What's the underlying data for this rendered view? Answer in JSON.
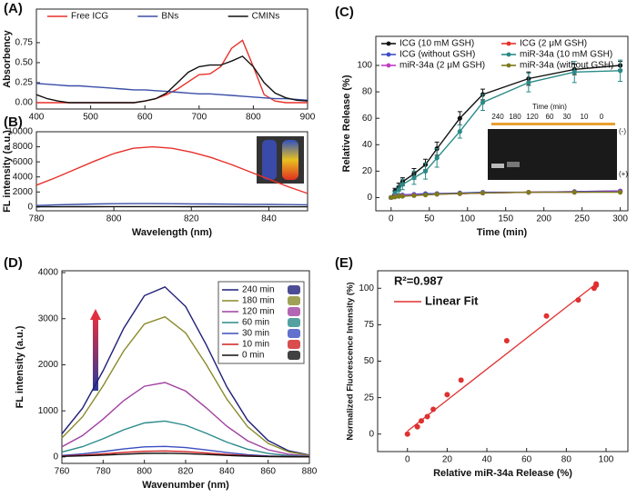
{
  "chart_data": [
    {
      "type": "line",
      "panel": "(A)",
      "ylabel": "Absorbency",
      "legend": "top",
      "x": [
        400,
        420,
        440,
        460,
        480,
        500,
        520,
        540,
        560,
        580,
        600,
        620,
        640,
        660,
        680,
        700,
        720,
        740,
        760,
        780,
        800,
        820,
        840,
        860,
        880,
        900
      ],
      "series": [
        {
          "name": "Free ICG",
          "color": "#e8302a",
          "values": [
            0,
            0,
            0,
            0,
            0,
            0,
            0,
            0,
            0,
            0,
            0.02,
            0.05,
            0.1,
            0.17,
            0.26,
            0.35,
            0.36,
            0.45,
            0.68,
            0.78,
            0.45,
            0.1,
            0.02,
            0,
            0,
            0
          ]
        },
        {
          "name": "BNs",
          "color": "#3b4ea8",
          "values": [
            0.24,
            0.23,
            0.22,
            0.21,
            0.21,
            0.2,
            0.19,
            0.18,
            0.17,
            0.16,
            0.16,
            0.15,
            0.14,
            0.13,
            0.12,
            0.11,
            0.11,
            0.1,
            0.09,
            0.08,
            0.07,
            0.06,
            0.05,
            0.05,
            0.04,
            0.03
          ]
        },
        {
          "name": "CMINs",
          "color": "#111111",
          "values": [
            0.1,
            0.05,
            0.02,
            0,
            0,
            0,
            0,
            0,
            0,
            0,
            0.02,
            0.05,
            0.12,
            0.25,
            0.38,
            0.45,
            0.47,
            0.47,
            0.52,
            0.58,
            0.45,
            0.25,
            0.12,
            0.06,
            0.03,
            0.02
          ]
        }
      ],
      "xlim": [
        400,
        900
      ],
      "xticks": [
        400,
        500,
        600,
        700,
        800,
        900
      ],
      "ylim": [
        -0.08,
        1.17
      ],
      "yticks": [
        {
          "value": 0,
          "label": "0.00"
        },
        {
          "value": 0.25,
          "label": "0.25"
        },
        {
          "value": 0.5,
          "label": "0.50"
        },
        {
          "value": 0.75,
          "label": "0.75"
        }
      ]
    },
    {
      "type": "line",
      "panel": "(B)",
      "xlabel": "Wavelength (nm)",
      "ylabel": "FL intensity (a.u.)",
      "x": [
        780,
        785,
        790,
        795,
        800,
        805,
        810,
        815,
        820,
        825,
        830,
        835,
        840,
        845,
        850
      ],
      "series": [
        {
          "color": "#e8302a",
          "values": [
            2900,
            3900,
            5000,
            6100,
            7100,
            7800,
            8000,
            7800,
            7300,
            6600,
            5700,
            4700,
            3700,
            2700,
            1800
          ]
        },
        {
          "color": "#3b4ea8",
          "values": [
            200,
            280,
            350,
            410,
            440,
            450,
            450,
            440,
            420,
            400,
            380,
            360,
            340,
            320,
            300
          ]
        },
        {
          "color": "#111111",
          "values": [
            30,
            35,
            40,
            45,
            50,
            50,
            50,
            50,
            45,
            45,
            40,
            40,
            35,
            35,
            30
          ]
        }
      ],
      "xlim": [
        780,
        850
      ],
      "xticks": [
        780,
        800,
        820,
        840
      ],
      "ylim": [
        -500,
        10000
      ],
      "yticks": [
        0,
        2000,
        4000,
        6000,
        8000,
        10000
      ]
    },
    {
      "type": "line",
      "panel": "(C)",
      "xlabel": "Time (min)",
      "ylabel": "Relative Release (%)",
      "legend": "upper left",
      "markers": true,
      "x": [
        0,
        5,
        10,
        15,
        30,
        45,
        60,
        90,
        120,
        180,
        240,
        300
      ],
      "series": [
        {
          "name": "ICG (10 mM GSH)",
          "color": "#111111",
          "values": [
            0,
            5,
            8,
            12,
            18,
            25,
            37,
            60,
            78,
            90,
            97,
            100
          ],
          "errors": [
            1,
            2,
            3,
            3,
            4,
            4,
            5,
            5,
            4,
            5,
            4,
            3
          ]
        },
        {
          "name": "ICG (2 μM GSH)",
          "color": "#e8302a",
          "values": [
            0,
            1,
            1,
            1.5,
            2,
            2.5,
            3,
            3,
            3.5,
            4,
            4.5,
            5
          ]
        },
        {
          "name": "ICG (without GSH)",
          "color": "#3f4ec7",
          "values": [
            0,
            1,
            1.5,
            2,
            2.5,
            3,
            3,
            3.5,
            4,
            4,
            4.5,
            5
          ]
        },
        {
          "name": "miR-34a (10 mM GSH)",
          "color": "#2a8a87",
          "values": [
            0,
            3,
            6,
            10,
            15,
            20,
            30,
            50,
            72,
            87,
            95,
            96
          ],
          "errors": [
            1,
            2,
            3,
            4,
            5,
            6,
            7,
            5,
            6,
            7,
            8,
            8
          ]
        },
        {
          "name": "miR-34a (2 μM GSH)",
          "color": "#c13dc4",
          "values": [
            0,
            1,
            1,
            1.5,
            2,
            2,
            2.5,
            3,
            3.5,
            4,
            4,
            4.5
          ]
        },
        {
          "name": "miR-34a (without GSH)",
          "color": "#7d7a1c",
          "values": [
            0,
            0.5,
            1,
            1,
            1.5,
            2,
            2.5,
            3,
            3.5,
            4,
            4,
            4
          ]
        }
      ],
      "gel": {
        "title": "Time (min)",
        "lanes": [
          "240",
          "180",
          "120",
          "60",
          "30",
          "10",
          "0"
        ],
        "top": "(-)",
        "bottom": "(+)"
      },
      "xlim": [
        -20,
        310
      ],
      "xticks": [
        0,
        50,
        100,
        150,
        200,
        250,
        300
      ],
      "ylim": [
        -10,
        122
      ],
      "yticks": [
        0,
        20,
        40,
        60,
        80,
        100
      ]
    },
    {
      "type": "line",
      "panel": "(D)",
      "xlabel": "Wavenumber (nm)",
      "ylabel": "FL intensity (a.u.)",
      "legend": "upper right",
      "x": [
        760,
        770,
        780,
        790,
        800,
        810,
        820,
        830,
        840,
        850,
        860,
        870,
        880
      ],
      "series": [
        {
          "name": "240 min",
          "color": "#1f1f7a",
          "values": [
            500,
            1058,
            1872,
            2794,
            3500,
            3689,
            3263,
            2431,
            1521,
            799,
            355,
            133,
            41
          ]
        },
        {
          "name": "180 min",
          "color": "#8a8a2a",
          "values": [
            412,
            872,
            1543,
            2303,
            2885,
            3041,
            2690,
            2004,
            1254,
            659,
            293,
            110,
            34
          ]
        },
        {
          "name": "120 min",
          "color": "#a040a0",
          "values": [
            219,
            463,
            820,
            1223,
            1533,
            1615,
            1429,
            1064,
            666,
            350,
            156,
            58,
            18
          ]
        },
        {
          "name": "60 min",
          "color": "#2a8a8a",
          "values": [
            105,
            223,
            395,
            589,
            738,
            778,
            688,
            512,
            321,
            168,
            75,
            28,
            9
          ]
        },
        {
          "name": "30 min",
          "color": "#3a4ec0",
          "values": [
            31,
            66,
            116,
            174,
            218,
            229,
            203,
            151,
            95,
            50,
            22,
            8,
            3
          ]
        },
        {
          "name": "10 min",
          "color": "#d02020",
          "values": [
            18,
            37,
            66,
            98,
            123,
            130,
            115,
            85,
            53,
            28,
            12,
            5,
            1
          ]
        },
        {
          "name": "0 min",
          "color": "#111111",
          "values": [
            11,
            23,
            40,
            60,
            76,
            80,
            71,
            53,
            33,
            17,
            8,
            3,
            1
          ]
        }
      ],
      "xlim": [
        760,
        880
      ],
      "xticks": [
        760,
        780,
        800,
        820,
        840,
        860,
        880
      ],
      "ylim": [
        -140,
        4040
      ],
      "yticks": [
        0,
        1000,
        2000,
        3000,
        4000
      ]
    },
    {
      "type": "scatter",
      "panel": "(E)",
      "xlabel": "Relative miR-34a Release (%)",
      "ylabel": "Normalized Fluorescence Intensity (%)",
      "annotation": "R²=0.987",
      "legend": "upper left",
      "x": [
        0,
        5,
        7,
        10,
        13,
        20,
        27,
        50,
        70,
        86,
        94,
        95,
        95
      ],
      "values": [
        0,
        5,
        9,
        12,
        17,
        27,
        37,
        64,
        81,
        92,
        100,
        102,
        103
      ],
      "color": "#e03030",
      "fit": {
        "name": "Linear Fit",
        "color": "#e03030",
        "x": [
          0,
          95
        ],
        "values": [
          2,
          103
        ]
      },
      "xlim": [
        -15,
        111
      ],
      "xticks": [
        0,
        20,
        40,
        60,
        80,
        100
      ],
      "ylim": [
        -12,
        112
      ],
      "yticks": [
        0,
        25,
        50,
        75,
        100
      ]
    }
  ]
}
